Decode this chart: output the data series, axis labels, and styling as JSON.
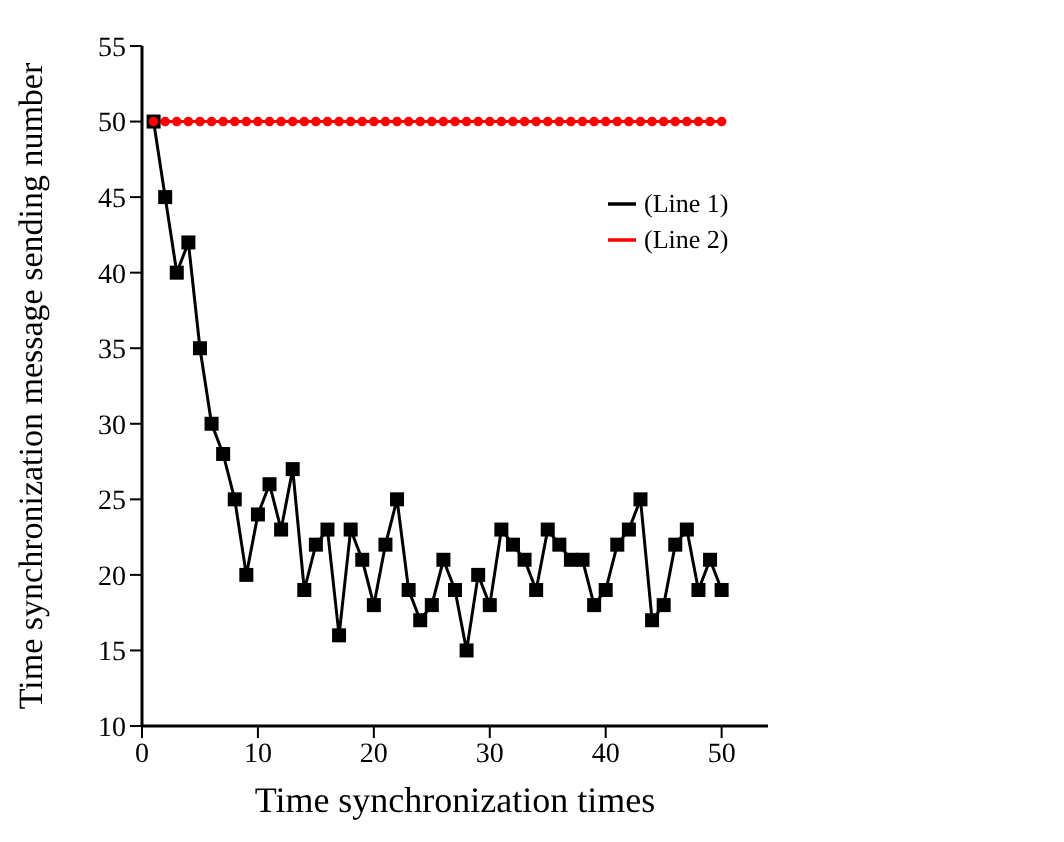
{
  "chart_data": {
    "type": "line",
    "xlabel": "Time synchronization times",
    "ylabel": "Time synchronization message sending number",
    "x": [
      1,
      2,
      3,
      4,
      5,
      6,
      7,
      8,
      9,
      10,
      11,
      12,
      13,
      14,
      15,
      16,
      17,
      18,
      19,
      20,
      21,
      22,
      23,
      24,
      25,
      26,
      27,
      28,
      29,
      30,
      31,
      32,
      33,
      34,
      35,
      36,
      37,
      38,
      39,
      40,
      41,
      42,
      43,
      44,
      45,
      46,
      47,
      48,
      49,
      50
    ],
    "series": [
      {
        "name": "(Line 1)",
        "color": "#000000",
        "marker": "square",
        "values": [
          50,
          45,
          40,
          42,
          35,
          30,
          28,
          25,
          20,
          24,
          26,
          23,
          27,
          19,
          22,
          23,
          16,
          23,
          21,
          18,
          22,
          25,
          19,
          17,
          18,
          21,
          19,
          15,
          20,
          18,
          23,
          22,
          21,
          19,
          23,
          22,
          21,
          21,
          18,
          19,
          22,
          23,
          25,
          17,
          18,
          22,
          23,
          19,
          21,
          19
        ]
      },
      {
        "name": "(Line 2)",
        "color": "#ff0000",
        "marker": "circle",
        "values": [
          50,
          50,
          50,
          50,
          50,
          50,
          50,
          50,
          50,
          50,
          50,
          50,
          50,
          50,
          50,
          50,
          50,
          50,
          50,
          50,
          50,
          50,
          50,
          50,
          50,
          50,
          50,
          50,
          50,
          50,
          50,
          50,
          50,
          50,
          50,
          50,
          50,
          50,
          50,
          50,
          50,
          50,
          50,
          50,
          50,
          50,
          50,
          50,
          50,
          50
        ]
      }
    ],
    "xlim": [
      0,
      54
    ],
    "xticks": [
      0,
      10,
      20,
      30,
      40,
      50
    ],
    "ylim": [
      10,
      55
    ],
    "yticks": [
      10,
      15,
      20,
      25,
      30,
      35,
      40,
      45,
      50,
      55
    ],
    "grid": false,
    "legend": "top right"
  }
}
